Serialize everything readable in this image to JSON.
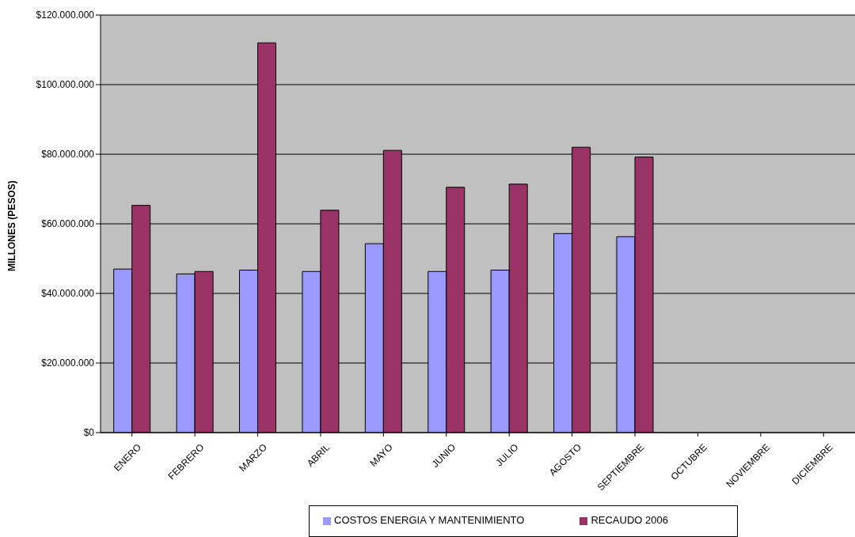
{
  "chart_data": {
    "type": "bar",
    "ylabel": "MILLONES (PESOS)",
    "categories": [
      "ENERO",
      "FEBRERO",
      "MARZO",
      "ABRIL",
      "MAYO",
      "JUNIO",
      "JULIO",
      "AGOSTO",
      "SEPTIEMBRE",
      "OCTUBRE",
      "NOVIEMBRE",
      "DICIEMBRE"
    ],
    "series": [
      {
        "name": "COSTOS ENERGIA Y MANTENIMIENTO",
        "color": "#9999ff",
        "values": [
          47000000,
          45600000,
          46700000,
          46300000,
          54300000,
          46300000,
          46700000,
          57200000,
          56300000,
          null,
          null,
          null
        ]
      },
      {
        "name": "RECAUDO 2006",
        "color": "#993366",
        "values": [
          65300000,
          46300000,
          112000000,
          63900000,
          81100000,
          70500000,
          71400000,
          82000000,
          79200000,
          null,
          null,
          null
        ]
      }
    ],
    "ylim": [
      0,
      120000000
    ],
    "yticks": [
      {
        "value": 0,
        "label": "$0"
      },
      {
        "value": 20000000,
        "label": "$20.000.000"
      },
      {
        "value": 40000000,
        "label": "$40.000.000"
      },
      {
        "value": 60000000,
        "label": "$60.000.000"
      },
      {
        "value": 80000000,
        "label": "$80.000.000"
      },
      {
        "value": 100000000,
        "label": "$100.000.000"
      },
      {
        "value": 120000000,
        "label": "$120.000.000"
      }
    ],
    "grid": "y",
    "legend": "bottom"
  }
}
